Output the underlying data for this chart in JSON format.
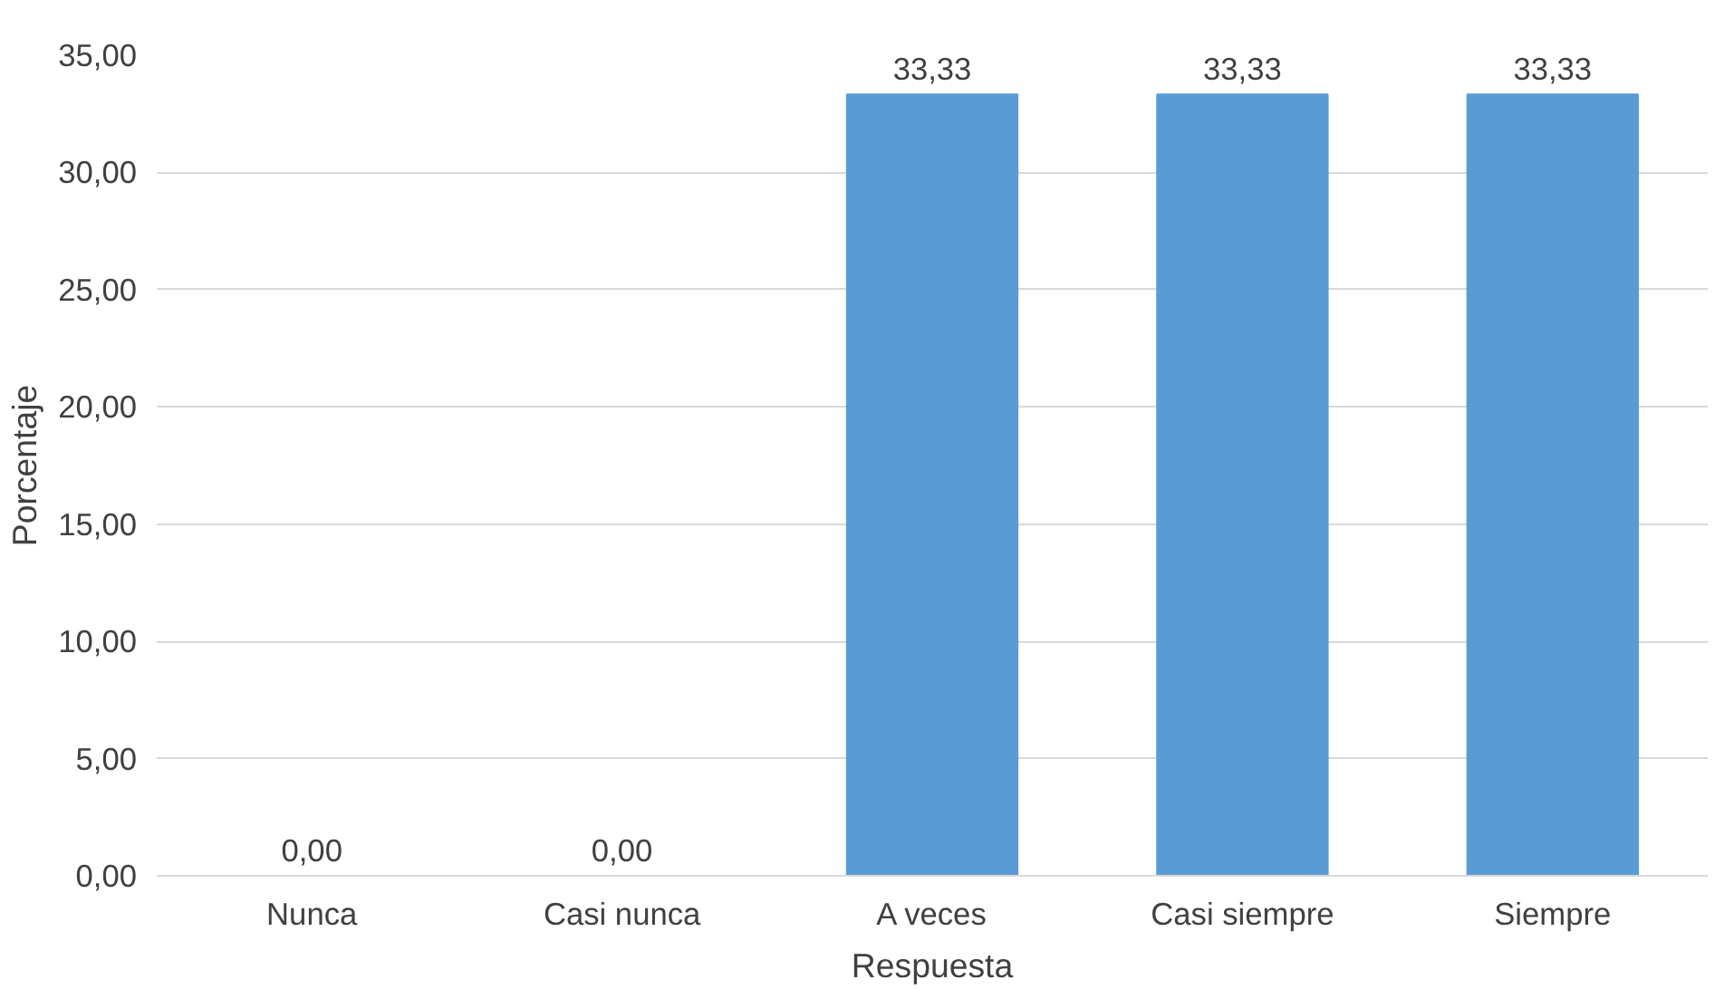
{
  "chart_data": {
    "type": "bar",
    "xlabel": "Respuesta",
    "ylabel": "Porcentaje",
    "categories": [
      "Nunca",
      "Casi nunca",
      "A veces",
      "Casi siempre",
      "Siempre"
    ],
    "values": [
      0,
      0,
      33.33,
      33.33,
      33.33
    ],
    "value_labels": [
      "0,00",
      "0,00",
      "33,33",
      "33,33",
      "33,33"
    ],
    "color": "#5b9bd5",
    "ylim": [
      0,
      35
    ],
    "yticks": [
      {
        "value": 0,
        "label": "0,00"
      },
      {
        "value": 5,
        "label": "5,00"
      },
      {
        "value": 10,
        "label": "10,00"
      },
      {
        "value": 15,
        "label": "15,00"
      },
      {
        "value": 20,
        "label": "20,00"
      },
      {
        "value": 25,
        "label": "25,00"
      },
      {
        "value": 30,
        "label": "30,00"
      },
      {
        "value": 35,
        "label": "35,00"
      }
    ],
    "grid": "y"
  }
}
